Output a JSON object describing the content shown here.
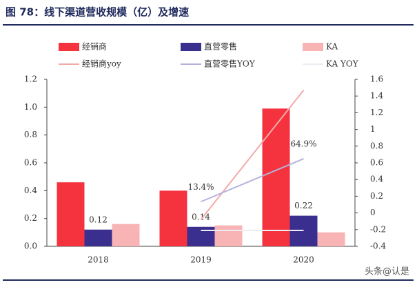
{
  "chart_data": {
    "type": "bar",
    "title": "图 78：线下渠道营收规模（亿）及增速",
    "categories": [
      "2018",
      "2019",
      "2020"
    ],
    "series": [
      {
        "name": "经销商",
        "color": "#f5333f",
        "type": "bar",
        "values": [
          0.46,
          0.4,
          0.99
        ]
      },
      {
        "name": "直营零售",
        "color": "#3a2f8f",
        "type": "bar",
        "values": [
          0.12,
          0.14,
          0.22
        ],
        "show_labels": true
      },
      {
        "name": "KA",
        "color": "#f8b4b5",
        "type": "bar",
        "values": [
          0.16,
          0.15,
          0.1
        ]
      },
      {
        "name": "经销商yoy",
        "color": "#f4a9a9",
        "type": "line",
        "axis": "y2",
        "values": [
          null,
          -0.08,
          1.47
        ]
      },
      {
        "name": "直营零售YOY",
        "color": "#b4b2dc",
        "type": "line",
        "axis": "y2",
        "values": [
          null,
          0.134,
          0.649
        ],
        "value_labels": [
          null,
          "13.4%",
          "64.9%"
        ]
      },
      {
        "name": "KA YOY",
        "color": "#ececf2",
        "type": "line",
        "axis": "y2",
        "values": [
          null,
          -0.21,
          -0.21
        ]
      }
    ],
    "ylim": [
      0,
      1.2
    ],
    "yticks": [
      {
        "value": 0,
        "label": "0.0"
      },
      0.2,
      0.4,
      0.6,
      0.8,
      {
        "value": 1,
        "label": "1.0"
      },
      1.2
    ],
    "y2lim": [
      -0.4,
      1.6
    ],
    "y2ticks": [
      -0.4,
      -0.2,
      0,
      0.2,
      0.4,
      0.6,
      0.8,
      1,
      1.2,
      1.4,
      1.6
    ],
    "watermark": "头条@认是"
  }
}
